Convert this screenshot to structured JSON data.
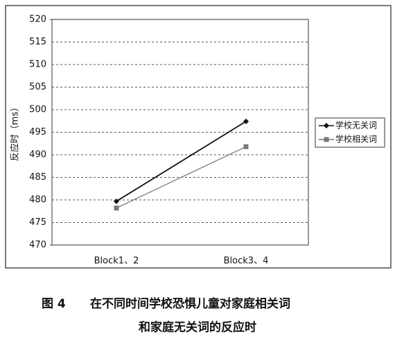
{
  "chart_data": {
    "type": "line",
    "y_label": "反应时（ms）",
    "categories": [
      "Block1、2",
      "Block3、4"
    ],
    "series": [
      {
        "name": "学校无关词",
        "color": "#111111",
        "marker": "diamond",
        "values": [
          479.7,
          497.4
        ]
      },
      {
        "name": "学校相关词",
        "color": "#777777",
        "marker": "square",
        "values": [
          478.2,
          491.8
        ]
      }
    ],
    "ylim": [
      470,
      520
    ],
    "yticks": [
      470,
      475,
      480,
      485,
      490,
      495,
      500,
      505,
      510,
      515,
      520
    ],
    "grid": true,
    "legend": "right",
    "figure_label": "图 4",
    "title": [
      "在不同时间学校恐惧儿童对家庭相关词",
      "和家庭无关词的反应时"
    ]
  }
}
